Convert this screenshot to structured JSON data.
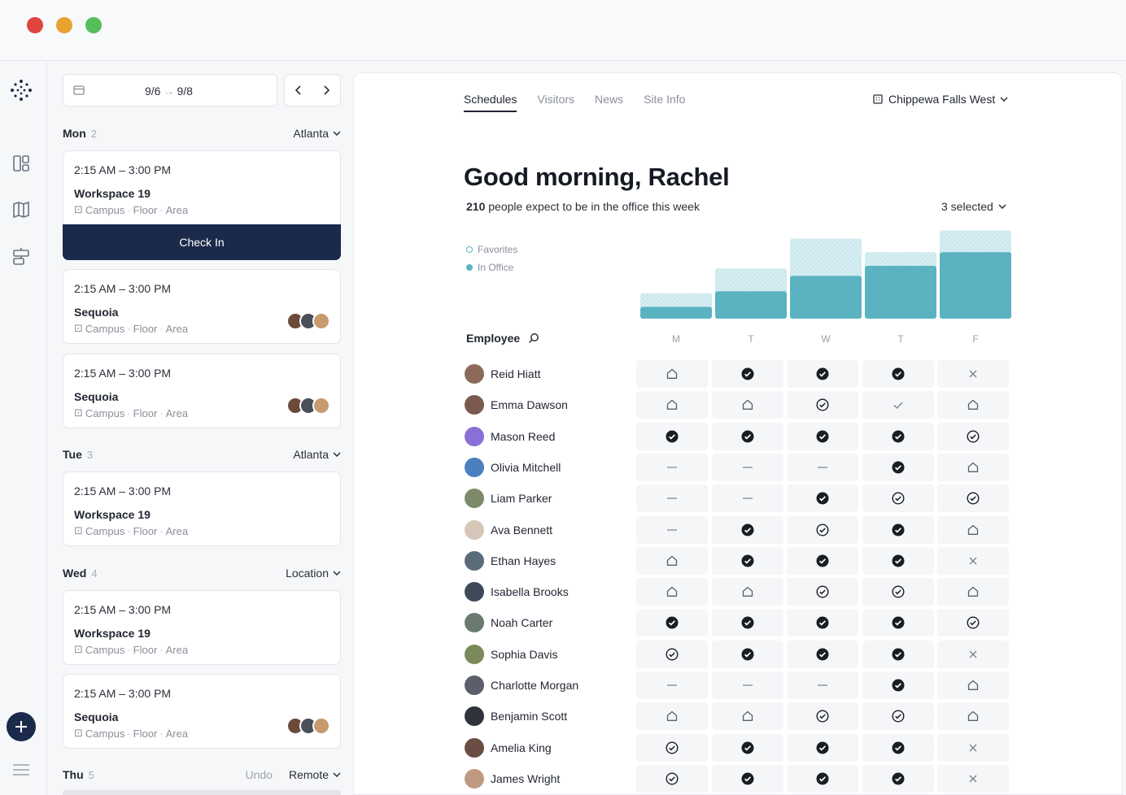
{
  "window": {
    "controls": [
      "close",
      "minimize",
      "maximize"
    ]
  },
  "rail": {
    "icons": [
      "logo-dots-icon",
      "dashboard-icon",
      "map-icon",
      "layout-icon"
    ],
    "fab_icon": "plus-icon",
    "menu_icon": "hamburger-icon"
  },
  "schedule": {
    "date_start": "9/6",
    "date_end": "9/8",
    "days": [
      {
        "name": "Mon",
        "num": "2",
        "location": "Atlanta",
        "bookings": [
          {
            "time": "2:15 AM – 3:00 PM",
            "space": "Workspace 19",
            "meta": [
              "Campus",
              "Floor",
              "Area"
            ],
            "action": "Check In",
            "avatars": 0
          },
          {
            "time": "2:15 AM – 3:00 PM",
            "space": "Sequoia",
            "meta": [
              "Campus",
              "Floor",
              "Area"
            ],
            "avatars": 3
          },
          {
            "time": "2:15 AM – 3:00 PM",
            "space": "Sequoia",
            "meta": [
              "Campus",
              "Floor",
              "Area"
            ],
            "avatars": 3
          }
        ]
      },
      {
        "name": "Tue",
        "num": "3",
        "location": "Atlanta",
        "bookings": [
          {
            "time": "2:15 AM – 3:00 PM",
            "space": "Workspace 19",
            "meta": [
              "Campus",
              "Floor",
              "Area"
            ],
            "avatars": 0
          }
        ]
      },
      {
        "name": "Wed",
        "num": "4",
        "location": "Location",
        "bookings": [
          {
            "time": "2:15 AM – 3:00 PM",
            "space": "Workspace 19",
            "meta": [
              "Campus",
              "Floor",
              "Area"
            ],
            "avatars": 0
          },
          {
            "time": "2:15 AM – 3:00 PM",
            "space": "Sequoia",
            "meta": [
              "Campus",
              "Floor",
              "Area"
            ],
            "avatars": 3
          }
        ]
      },
      {
        "name": "Thu",
        "num": "5",
        "location": "Remote",
        "undo": "Undo",
        "bookings": []
      }
    ]
  },
  "tabs": [
    {
      "label": "Schedules",
      "active": true
    },
    {
      "label": "Visitors",
      "active": false
    },
    {
      "label": "News",
      "active": false
    },
    {
      "label": "Site Info",
      "active": false
    }
  ],
  "site": "Chippewa Falls West",
  "greeting": "Good morning, Rachel",
  "office_count": "210",
  "office_text": "people expect to be in the office this week",
  "selected": "3 selected",
  "legend": {
    "favorites": "Favorites",
    "in_office": "In Office"
  },
  "colors": {
    "accent": "#5bb3c1",
    "accent_light": "#cfe9ee",
    "navy": "#1b2a4a"
  },
  "chart_data": {
    "type": "bar",
    "categories": [
      "M",
      "T",
      "W",
      "T",
      "F"
    ],
    "series": [
      {
        "name": "Favorites",
        "values": [
          28,
          55,
          88,
          73,
          97
        ]
      },
      {
        "name": "In Office",
        "values": [
          13,
          30,
          47,
          58,
          73
        ]
      }
    ],
    "ylim": [
      0,
      100
    ]
  },
  "employees": {
    "header": "Employee",
    "days": [
      "M",
      "T",
      "W",
      "T",
      "F"
    ],
    "legend_icons": {
      "home": "home-icon",
      "checked": "check-filled-icon",
      "circle": "check-circle-icon",
      "tick": "check-icon",
      "x": "close-icon",
      "dash": "dash-icon"
    },
    "rows": [
      {
        "name": "Reid Hiatt",
        "status": [
          "home",
          "checked",
          "checked",
          "checked",
          "x"
        ]
      },
      {
        "name": "Emma Dawson",
        "status": [
          "home",
          "home",
          "circle",
          "tick",
          "home"
        ]
      },
      {
        "name": "Mason Reed",
        "status": [
          "checked",
          "checked",
          "checked",
          "checked",
          "circle"
        ]
      },
      {
        "name": "Olivia Mitchell",
        "status": [
          "dash",
          "dash",
          "dash",
          "checked",
          "home"
        ]
      },
      {
        "name": "Liam Parker",
        "status": [
          "dash",
          "dash",
          "checked",
          "circle",
          "circle"
        ]
      },
      {
        "name": "Ava Bennett",
        "status": [
          "dash",
          "checked",
          "circle",
          "checked",
          "home"
        ]
      },
      {
        "name": "Ethan Hayes",
        "status": [
          "home",
          "checked",
          "checked",
          "checked",
          "x"
        ]
      },
      {
        "name": "Isabella Brooks",
        "status": [
          "home",
          "home",
          "circle",
          "circle",
          "home"
        ]
      },
      {
        "name": "Noah Carter",
        "status": [
          "checked",
          "checked",
          "checked",
          "checked",
          "circle"
        ]
      },
      {
        "name": "Sophia Davis",
        "status": [
          "circle",
          "checked",
          "checked",
          "checked",
          "x"
        ]
      },
      {
        "name": "Charlotte Morgan",
        "status": [
          "dash",
          "dash",
          "dash",
          "checked",
          "home"
        ]
      },
      {
        "name": "Benjamin Scott",
        "status": [
          "home",
          "home",
          "circle",
          "circle",
          "home"
        ]
      },
      {
        "name": "Amelia King",
        "status": [
          "circle",
          "checked",
          "checked",
          "checked",
          "x"
        ]
      },
      {
        "name": "James Wright",
        "status": [
          "circle",
          "checked",
          "checked",
          "checked",
          "x"
        ]
      }
    ]
  }
}
